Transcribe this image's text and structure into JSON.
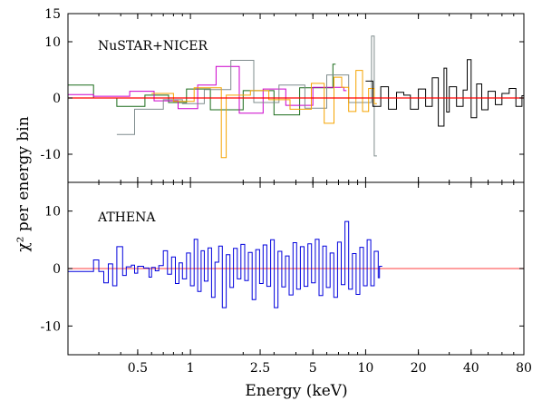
{
  "chart_data": {
    "type": "step-residuals",
    "xlabel": "Energy (keV)",
    "ylabel": "χ² per energy bin",
    "x_scale": "log",
    "xlim": [
      0.2,
      80
    ],
    "x_ticks": [
      {
        "v": 0.5,
        "label": "0.5"
      },
      {
        "v": 1,
        "label": "1"
      },
      {
        "v": 2.5,
        "label": "2.5"
      },
      {
        "v": 5,
        "label": "5"
      },
      {
        "v": 10,
        "label": "10"
      },
      {
        "v": 20,
        "label": "20"
      },
      {
        "v": 40,
        "label": "40"
      },
      {
        "v": 80,
        "label": "80"
      }
    ],
    "panels": [
      {
        "label": "NuSTAR+NICER",
        "ylim": [
          -15,
          15
        ],
        "y_ticks": [
          {
            "v": 15,
            "label": "15"
          },
          {
            "v": 10,
            "label": "10"
          },
          {
            "v": 0,
            "label": "0"
          },
          {
            "v": -10,
            "label": "-10"
          }
        ],
        "reference_line": {
          "y": 0,
          "color": "#ff0000"
        },
        "series": [
          {
            "color": "#1a6b1a",
            "x": [
              0.2,
              0.28,
              0.28,
              0.38,
              0.55,
              0.75,
              0.95,
              1.3,
              2.0,
              3.0,
              4.2,
              6.5
            ],
            "y": [
              2.3,
              2.3,
              0.0,
              -1.5,
              0.5,
              -0.8,
              1.6,
              -2.1,
              1.3,
              -3.0,
              1.8,
              6.0
            ]
          },
          {
            "color": "#cc00cc",
            "x": [
              0.2,
              0.28,
              0.45,
              0.62,
              0.85,
              1.1,
              1.4,
              1.9,
              2.6,
              3.5,
              5.0,
              7.5
            ],
            "y": [
              0.6,
              0.3,
              1.2,
              -0.5,
              -1.9,
              2.3,
              5.6,
              -2.7,
              1.6,
              -1.3,
              1.9,
              1.3
            ]
          },
          {
            "color": "#7f8c8d",
            "x": [
              0.38,
              0.48,
              0.7,
              0.9,
              1.2,
              1.7,
              2.3,
              3.2,
              4.5,
              6.0,
              8.0,
              10.8,
              11.2
            ],
            "y": [
              -6.5,
              -2.0,
              -0.3,
              -1.0,
              1.5,
              6.7,
              -0.8,
              2.3,
              -1.8,
              4.1,
              -0.8,
              11.0,
              -10.3
            ]
          },
          {
            "color": "#f5a300",
            "x": [
              0.6,
              0.8,
              1.05,
              1.5,
              1.6,
              2.2,
              2.8,
              3.7,
              4.9,
              5.8,
              6.6,
              7.3,
              8.0,
              8.8,
              9.6,
              10.4,
              11.2
            ],
            "y": [
              0.8,
              -0.6,
              1.8,
              -10.6,
              0.5,
              1.3,
              -0.3,
              -2.0,
              2.6,
              -4.5,
              3.7,
              1.9,
              -2.4,
              4.9,
              -2.4,
              1.7,
              -1.0
            ]
          },
          {
            "color": "#000000",
            "x": [
              10,
              11,
              12.2,
              13.5,
              15,
              16.5,
              18,
              20,
              22,
              24,
              26,
              28,
              29,
              30,
              33,
              36,
              38,
              40,
              43,
              46,
              50,
              55,
              60,
              66,
              72,
              78
            ],
            "y": [
              3.0,
              -1.5,
              2.0,
              -2.0,
              1.0,
              0.5,
              -2.0,
              1.6,
              -1.5,
              3.6,
              -5.0,
              5.3,
              -2.5,
              2.0,
              -1.5,
              1.4,
              6.8,
              -3.5,
              2.5,
              -2.1,
              1.2,
              -1.2,
              0.8,
              1.7,
              -1.5,
              0.4
            ]
          }
        ]
      },
      {
        "label": "ATHENA",
        "ylim": [
          -15,
          15
        ],
        "y_ticks": [
          {
            "v": 10,
            "label": "10"
          },
          {
            "v": 0,
            "label": "0"
          },
          {
            "v": -10,
            "label": "-10"
          }
        ],
        "reference_line": {
          "y": 0,
          "color": "#ff6666"
        },
        "series": [
          {
            "color": "#0000dd",
            "x": [
              0.2,
              0.28,
              0.3,
              0.32,
              0.34,
              0.36,
              0.38,
              0.41,
              0.43,
              0.46,
              0.48,
              0.5,
              0.54,
              0.58,
              0.6,
              0.63,
              0.66,
              0.7,
              0.74,
              0.78,
              0.82,
              0.86,
              0.9,
              0.95,
              1.0,
              1.05,
              1.1,
              1.15,
              1.2,
              1.26,
              1.32,
              1.38,
              1.45,
              1.52,
              1.6,
              1.68,
              1.76,
              1.85,
              1.94,
              2.04,
              2.14,
              2.25,
              2.36,
              2.48,
              2.6,
              2.73,
              2.87,
              3.01,
              3.16,
              3.32,
              3.49,
              3.66,
              3.85,
              4.04,
              4.24,
              4.45,
              4.68,
              4.91,
              5.16,
              5.42,
              5.69,
              5.97,
              6.27,
              6.58,
              6.91,
              7.26,
              7.62,
              8.0,
              8.4,
              8.82,
              9.26,
              9.72,
              10.2,
              10.7,
              11.2,
              11.8,
              12.0
            ],
            "y": [
              -0.5,
              1.5,
              -0.5,
              -2.5,
              0.8,
              -3.0,
              3.8,
              -1.2,
              0.3,
              0.6,
              -0.8,
              0.4,
              0.1,
              -1.5,
              0.2,
              -0.4,
              0.5,
              3.1,
              -1.0,
              2.0,
              -2.6,
              1.0,
              -1.8,
              2.7,
              -3.0,
              5.1,
              -4.0,
              3.1,
              -2.2,
              3.6,
              -5.0,
              1.1,
              3.9,
              -6.8,
              2.4,
              -3.3,
              3.5,
              -1.8,
              4.2,
              -2.1,
              2.8,
              -5.4,
              3.3,
              -2.6,
              4.1,
              -3.1,
              5.0,
              -6.8,
              3.0,
              -3.2,
              2.2,
              -4.6,
              4.5,
              -3.6,
              3.8,
              -3.1,
              4.3,
              -2.5,
              5.1,
              -4.7,
              3.9,
              -3.3,
              2.7,
              -5.0,
              4.6,
              -2.8,
              8.2,
              -3.6,
              2.6,
              -4.5,
              3.7,
              -3.0,
              5.0,
              -3.0,
              3.0,
              -1.6,
              0.4
            ]
          }
        ]
      }
    ]
  }
}
